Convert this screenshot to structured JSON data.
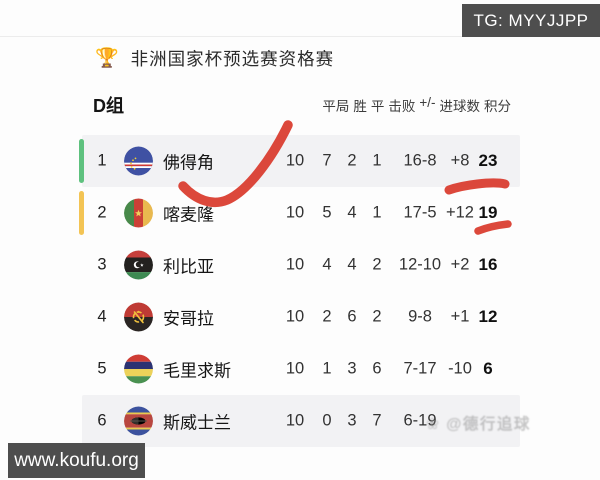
{
  "banners": {
    "tg": "TG: MYYJJPP",
    "site": "www.koufu.org"
  },
  "header": {
    "trophy_icon": "🏆",
    "title": "非洲国家杯预选赛资格赛"
  },
  "table": {
    "group_label": "D组",
    "column_headers": [
      "平局",
      "胜",
      "平",
      "击败",
      "+/-",
      "进球数",
      "积分"
    ],
    "rows": [
      {
        "rank": "1",
        "team": "佛得角",
        "flag": "cape-verde",
        "mp": "10",
        "w": "7",
        "d": "2",
        "l": "1",
        "goals": "16-8",
        "diff": "+8",
        "pts": "23",
        "stripe": "#5ec17e",
        "shaded": true
      },
      {
        "rank": "2",
        "team": "喀麦隆",
        "flag": "cameroon",
        "mp": "10",
        "w": "5",
        "d": "4",
        "l": "1",
        "goals": "17-5",
        "diff": "+12",
        "pts": "19",
        "stripe": "#f3c454",
        "shaded": false
      },
      {
        "rank": "3",
        "team": "利比亚",
        "flag": "libya",
        "mp": "10",
        "w": "4",
        "d": "4",
        "l": "2",
        "goals": "12-10",
        "diff": "+2",
        "pts": "16",
        "stripe": null,
        "shaded": false
      },
      {
        "rank": "4",
        "team": "安哥拉",
        "flag": "angola",
        "mp": "10",
        "w": "2",
        "d": "6",
        "l": "2",
        "goals": "9-8",
        "diff": "+1",
        "pts": "12",
        "stripe": null,
        "shaded": false
      },
      {
        "rank": "5",
        "team": "毛里求斯",
        "flag": "mauritius",
        "mp": "10",
        "w": "1",
        "d": "3",
        "l": "6",
        "goals": "7-17",
        "diff": "-10",
        "pts": "6",
        "stripe": null,
        "shaded": false
      },
      {
        "rank": "6",
        "team": "斯威士兰",
        "flag": "eswatini",
        "mp": "10",
        "w": "0",
        "d": "3",
        "l": "7",
        "goals": "6-19",
        "diff": "",
        "pts": "",
        "stripe": null,
        "shaded": true
      }
    ]
  },
  "watermark": "❀ @德行追球",
  "annotations": {
    "color": "#d93a2c",
    "marks": [
      "check-over-rank1",
      "underline-points-23",
      "underline-points-19"
    ]
  },
  "colors": {
    "rank1_stripe_green": "#5ec17e",
    "rank2_stripe_yellow": "#f3c454",
    "row_shade": "#f2f2f4",
    "banner_bg": "#4e4e4e",
    "annotation_red": "#d93a2c"
  }
}
